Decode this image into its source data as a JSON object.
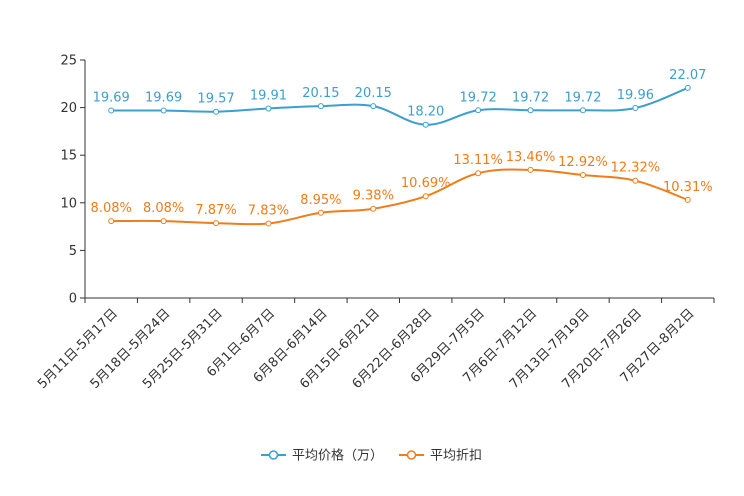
{
  "chart_data": {
    "type": "line",
    "title": "",
    "xlabel": "",
    "ylabel": "",
    "ylim": [
      0,
      25
    ],
    "yticks": [
      0,
      5,
      10,
      15,
      20,
      25
    ],
    "grid": false,
    "legend_position": "bottom-center",
    "categories": [
      "5月11日-5月17日",
      "5月18日-5月24日",
      "5月25日-5月31日",
      "6月1日-6月7日",
      "6月8日-6月14日",
      "6月15日-6月21日",
      "6月22日-6月28日",
      "6月29日-7月5日",
      "7月6日-7月12日",
      "7月13日-7月19日",
      "7月20日-7月26日",
      "7月27日-8月2日"
    ],
    "series": [
      {
        "name": "平均价格（万）",
        "color": "#3b9fcf",
        "values": [
          19.69,
          19.69,
          19.57,
          19.91,
          20.15,
          20.15,
          18.2,
          19.72,
          19.72,
          19.72,
          19.96,
          22.07
        ],
        "labels": [
          "19.69",
          "19.69",
          "19.57",
          "19.91",
          "20.15",
          "20.15",
          "18.20",
          "19.72",
          "19.72",
          "19.72",
          "19.96",
          "22.07"
        ]
      },
      {
        "name": "平均折扣",
        "color": "#f07c1a",
        "values": [
          8.08,
          8.08,
          7.87,
          7.83,
          8.95,
          9.38,
          10.69,
          13.11,
          13.46,
          12.92,
          12.32,
          10.31
        ],
        "labels": [
          "8.08%",
          "8.08%",
          "7.87%",
          "7.83%",
          "8.95%",
          "9.38%",
          "10.69%",
          "13.11%",
          "13.46%",
          "12.92%",
          "12.32%",
          "10.31%"
        ]
      }
    ]
  }
}
